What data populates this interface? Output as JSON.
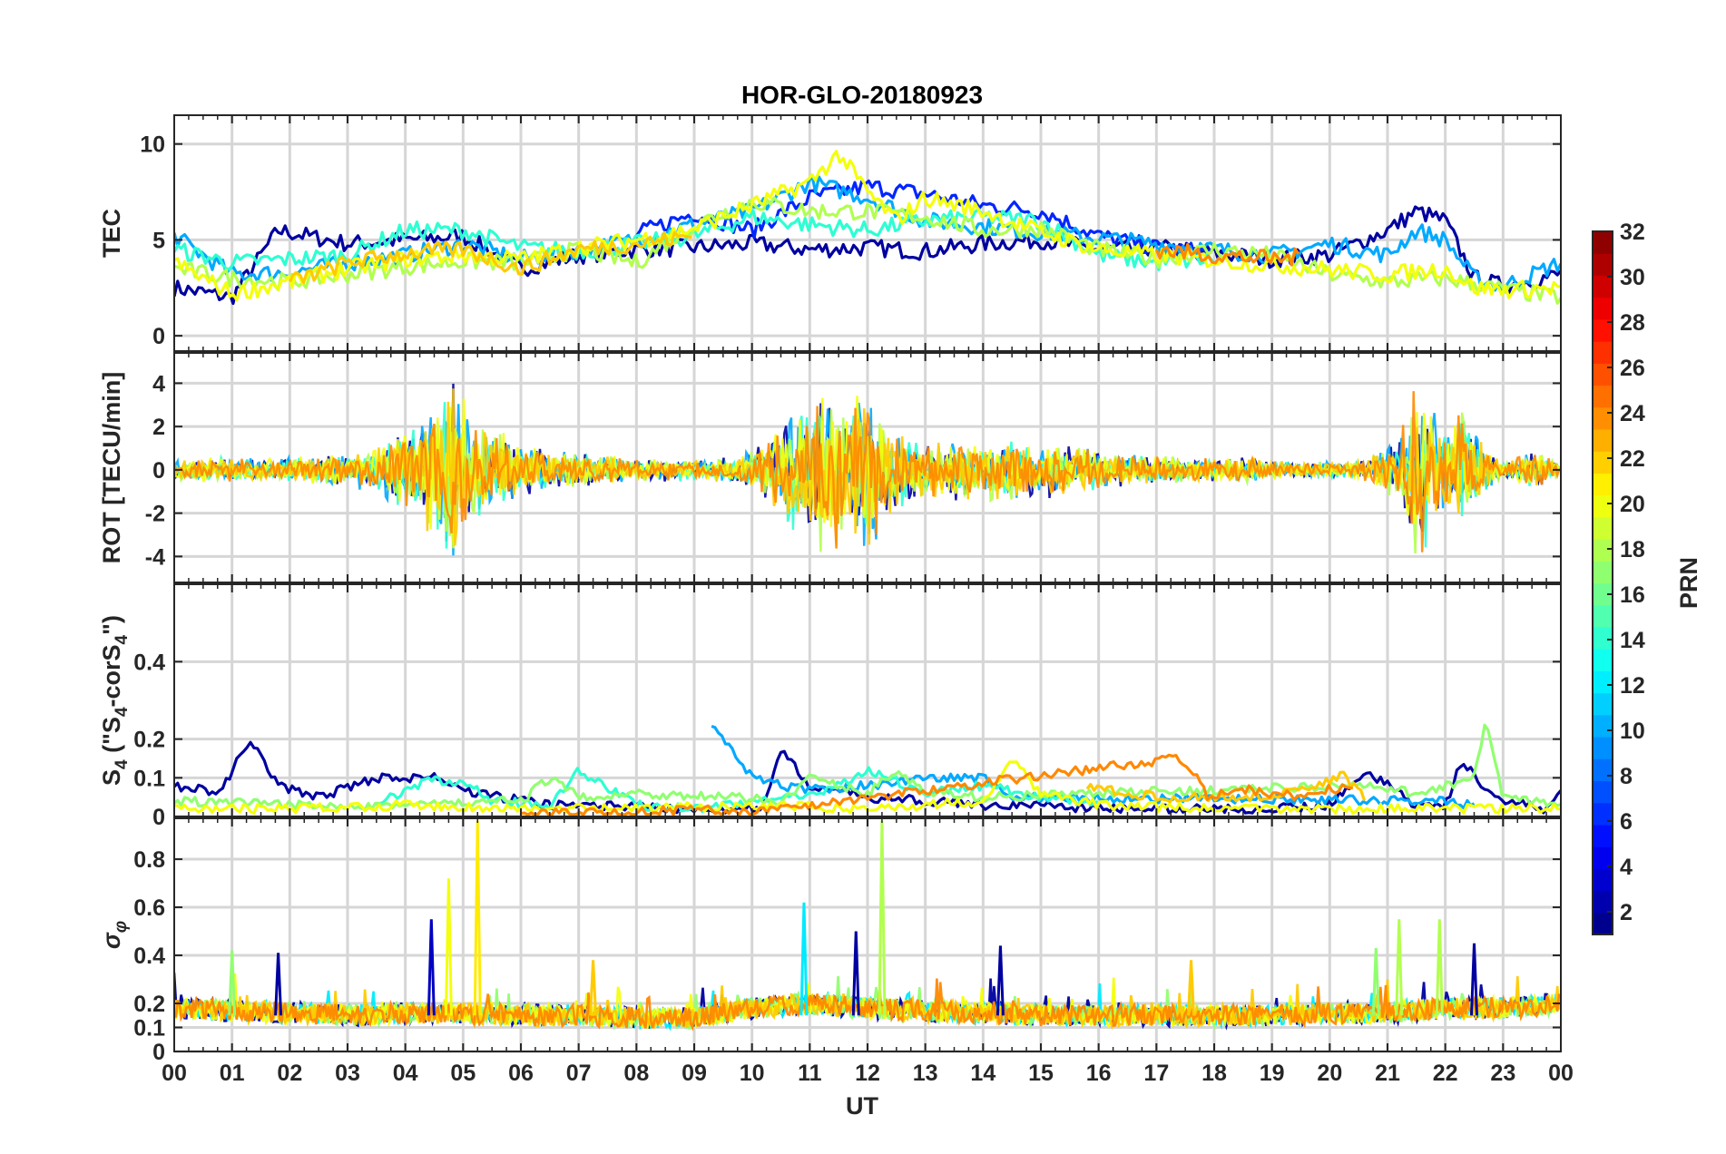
{
  "chart_data": {
    "type": "line",
    "title": "HOR-GLO-20180923",
    "xlabel": "UT",
    "x_tick_labels": [
      "00",
      "01",
      "02",
      "03",
      "04",
      "05",
      "06",
      "07",
      "08",
      "09",
      "10",
      "11",
      "12",
      "13",
      "14",
      "15",
      "16",
      "17",
      "18",
      "19",
      "20",
      "21",
      "22",
      "23",
      "00"
    ],
    "xlim_hours": [
      0,
      24
    ],
    "color_by": "PRN",
    "panels": [
      {
        "id": "tec",
        "ylabel": "TEC",
        "ylim": [
          -0.8,
          11.5
        ],
        "yticks": [
          0,
          5,
          10
        ],
        "ytick_labels": [
          "0",
          "5",
          "10"
        ],
        "series": [
          {
            "prn": 2,
            "x": [
              0,
              1,
              1.8,
              3,
              4,
              5,
              6,
              7,
              8,
              9,
              10,
              11,
              12,
              13,
              14,
              15,
              16,
              17,
              18,
              19,
              20,
              21,
              21.5,
              22,
              22.5,
              23,
              24
            ],
            "y": [
              2.5,
              2,
              5.5,
              4.8,
              5,
              5.2,
              3.5,
              4.2,
              4.5,
              4.6,
              4.8,
              4.5,
              4.6,
              4.4,
              4.8,
              5,
              4.5,
              4.6,
              4.3,
              4,
              4.2,
              5.5,
              6.5,
              6,
              3,
              2.6,
              3.2
            ]
          },
          {
            "prn": 6,
            "x": [
              8,
              9,
              10,
              11,
              12,
              13,
              14,
              15,
              16,
              17,
              18
            ],
            "y": [
              5.3,
              6.4,
              5.5,
              7.2,
              7.8,
              7.4,
              6.8,
              6.5,
              5.2,
              4.6,
              4.3
            ]
          },
          {
            "prn": 10,
            "x": [
              0,
              1,
              2,
              3,
              4,
              5,
              6,
              7,
              8,
              9,
              10,
              11,
              12,
              13,
              19,
              20,
              21,
              21.5,
              22,
              22.5,
              23,
              24
            ],
            "y": [
              5.2,
              3.2,
              3.3,
              3.8,
              4.2,
              4.8,
              4,
              4.5,
              5,
              5.8,
              6.5,
              8,
              7.2,
              6,
              4.2,
              4.8,
              4.2,
              5.5,
              5,
              3,
              2.6,
              3.8
            ]
          },
          {
            "prn": 14,
            "x": [
              0,
              1,
              2,
              3,
              4,
              5,
              6,
              7,
              8,
              9,
              10,
              11,
              12,
              13,
              14,
              15,
              16,
              17,
              18
            ],
            "y": [
              4.5,
              3.8,
              4,
              4.2,
              5.5,
              5.5,
              4.6,
              4.4,
              4.8,
              5.2,
              6.2,
              5.8,
              5.5,
              6,
              6.2,
              6,
              4.2,
              3.8,
              4
            ]
          },
          {
            "prn": 18,
            "x": [
              0,
              1,
              2,
              3,
              4,
              5,
              6,
              7,
              8,
              9,
              10,
              11,
              12,
              13,
              14,
              15,
              16,
              17,
              18,
              19,
              20,
              21,
              22,
              23,
              24
            ],
            "y": [
              3.5,
              3,
              2.8,
              3.2,
              3.6,
              3.9,
              3.8,
              4.5,
              3.8,
              5.8,
              7,
              6.5,
              6.5,
              6.2,
              5.5,
              5.6,
              4.5,
              4,
              4.5,
              4.2,
              3.2,
              2.8,
              3,
              2.4,
              2
            ]
          },
          {
            "prn": 20,
            "x": [
              0,
              1,
              2,
              3,
              4,
              5,
              6,
              7,
              8,
              9,
              10,
              11,
              11.5,
              12,
              12.5,
              13,
              14,
              15,
              16,
              17,
              21,
              22,
              22.5,
              23,
              24
            ],
            "y": [
              3.8,
              2.2,
              2.8,
              3.5,
              4,
              4.2,
              4,
              4.6,
              5,
              5.6,
              6.8,
              8,
              9.5,
              7.5,
              6,
              7.2,
              6.5,
              5.4,
              4.5,
              4.2,
              3.2,
              3.5,
              2.5,
              2.4,
              2.5
            ]
          },
          {
            "prn": 22,
            "x": [
              2,
              3,
              4,
              5,
              6,
              7,
              8,
              9
            ],
            "y": [
              2.8,
              3.8,
              4.3,
              4.5,
              3.5,
              4.5,
              4.8,
              5.2
            ]
          },
          {
            "prn": 24,
            "x": [
              17,
              18,
              19,
              19.5
            ],
            "y": [
              4.5,
              4.2,
              4,
              4.1
            ]
          }
        ]
      },
      {
        "id": "rot",
        "ylabel": "ROT [TECU/min]",
        "ylim": [
          -5.2,
          5.4
        ],
        "yticks": [
          -4,
          -2,
          0,
          2,
          4
        ],
        "ytick_labels": [
          "-4",
          "-2",
          "0",
          "2",
          "4"
        ],
        "activity_envelope": {
          "x": [
            0,
            0.8,
            1.5,
            2,
            3,
            3.5,
            4,
            4.5,
            4.8,
            5.2,
            6,
            6.5,
            7,
            8,
            9,
            9.5,
            10,
            10.8,
            11.1,
            11.6,
            12,
            12.3,
            12.8,
            13.5,
            14.5,
            15.5,
            16.5,
            17.5,
            18.5,
            19.5,
            20.5,
            21.2,
            21.5,
            22,
            22.3,
            22.6,
            23,
            23.5,
            24
          ],
          "amplitude": [
            0.5,
            0.7,
            0.5,
            0.6,
            0.8,
            1.2,
            2.3,
            3.5,
            4.8,
            2.5,
            1.4,
            0.9,
            0.8,
            0.6,
            0.5,
            0.6,
            0.9,
            3.2,
            4.2,
            3.5,
            4.4,
            2.5,
            1.5,
            1.5,
            1.6,
            1.2,
            0.8,
            0.6,
            0.6,
            0.4,
            0.4,
            1.5,
            4.5,
            2,
            3.2,
            1.5,
            0.4,
            1,
            0.3
          ]
        }
      },
      {
        "id": "s4",
        "ylabel": "S4 (\"S4-corS4\")",
        "ylim": [
          0,
          0.6
        ],
        "yticks": [
          0,
          0.1,
          0.2,
          0.4
        ],
        "ytick_labels": [
          "0",
          "0.1",
          "0.2",
          "0.4"
        ],
        "series": [
          {
            "prn": 2,
            "x": [
              0,
              0.8,
              1.3,
              1.8,
              2.5,
              3.5,
              4.5,
              5.2,
              6.5,
              7.2,
              9,
              10.2,
              10.5,
              11,
              12,
              13,
              14,
              15,
              16,
              17,
              18,
              19,
              20,
              20.6,
              21.2,
              21.4,
              21.6,
              22,
              22.3,
              22.6,
              23,
              23.7,
              24
            ],
            "y": [
              0.08,
              0.06,
              0.2,
              0.08,
              0.05,
              0.1,
              0.1,
              0.06,
              0.03,
              0.03,
              0.02,
              0.02,
              0.17,
              0.08,
              0.05,
              0.04,
              0.03,
              0.03,
              0.02,
              0.02,
              0.02,
              0.02,
              0.03,
              0.12,
              0.06,
              0.03,
              0.04,
              0.03,
              0.15,
              0.08,
              0.04,
              0.02,
              0.06
            ]
          },
          {
            "prn": 10,
            "x": [
              9.3,
              9.6,
              10,
              10.5,
              11,
              12,
              13,
              14,
              14.5,
              21.5,
              22,
              22.5
            ],
            "y": [
              0.24,
              0.18,
              0.1,
              0.08,
              0.07,
              0.08,
              0.1,
              0.1,
              0.05,
              0.04,
              0.04,
              0.03
            ]
          },
          {
            "prn": 14,
            "x": [
              3.5,
              4.5,
              5.2,
              5.5,
              6.5,
              7,
              8,
              9,
              10,
              11,
              12,
              13,
              14,
              15,
              16
            ],
            "y": [
              0.03,
              0.1,
              0.07,
              0.04,
              0.03,
              0.12,
              0.03,
              0.02,
              0.04,
              0.05,
              0.12,
              0.06,
              0.08,
              0.05,
              0.03
            ]
          },
          {
            "prn": 17,
            "x": [
              0,
              2,
              4,
              6,
              6.5,
              7,
              8,
              9.5,
              10.5,
              11,
              12,
              12.5,
              13,
              14,
              20.5,
              21,
              21.5,
              22.5,
              22.7,
              23,
              24
            ],
            "y": [
              0.04,
              0.03,
              0.03,
              0.04,
              0.1,
              0.05,
              0.06,
              0.05,
              0.04,
              0.1,
              0.06,
              0.12,
              0.06,
              0.05,
              0.08,
              0.07,
              0.06,
              0.1,
              0.24,
              0.05,
              0.03
            ]
          },
          {
            "prn": 20,
            "x": [
              0,
              2,
              4,
              6,
              8,
              10,
              12,
              14,
              14.5,
              15,
              16,
              18,
              20,
              22,
              24
            ],
            "y": [
              0.02,
              0.02,
              0.03,
              0.02,
              0.02,
              0.03,
              0.02,
              0.04,
              0.15,
              0.06,
              0.03,
              0.02,
              0.02,
              0.02,
              0.02
            ]
          },
          {
            "prn": 22,
            "x": [
              15.8,
              16.5,
              17,
              17.5,
              17.8,
              18,
              19,
              19.8,
              20.2,
              20.6
            ],
            "y": [
              0.08,
              0.06,
              0.05,
              0.05,
              0.05,
              0.05,
              0.05,
              0.08,
              0.11,
              0.05
            ]
          },
          {
            "prn": 24,
            "x": [
              6,
              7,
              8,
              9,
              10,
              17.3,
              17.6,
              17.9,
              18.5,
              19,
              19.5,
              20,
              20.4
            ],
            "y": [
              0.01,
              0.01,
              0.01,
              0.02,
              0.01,
              0.15,
              0.12,
              0.05,
              0.07,
              0.06,
              0.05,
              0.07,
              0.08
            ]
          }
        ]
      },
      {
        "id": "sigma_phi",
        "ylabel": "σ φ",
        "ylim": [
          0,
          0.97
        ],
        "yticks": [
          0,
          0.1,
          0.2,
          0.4,
          0.6,
          0.8
        ],
        "ytick_labels": [
          "0",
          "0.1",
          "0.2",
          "0.4",
          "0.6",
          "0.8"
        ],
        "baseline": {
          "x": [
            0,
            1,
            2,
            3,
            4,
            5,
            6,
            7,
            8,
            9,
            10,
            11,
            12,
            13,
            14,
            15,
            16,
            17,
            18,
            19,
            20,
            21,
            22,
            23,
            24
          ],
          "y": [
            0.18,
            0.17,
            0.16,
            0.15,
            0.16,
            0.16,
            0.15,
            0.15,
            0.14,
            0.14,
            0.18,
            0.2,
            0.18,
            0.17,
            0.16,
            0.15,
            0.15,
            0.15,
            0.15,
            0.15,
            0.16,
            0.16,
            0.18,
            0.18,
            0.2
          ]
        },
        "spikes": [
          {
            "x": 1.0,
            "y": 0.42,
            "prn": 17
          },
          {
            "x": 1.8,
            "y": 0.41,
            "prn": 2
          },
          {
            "x": 4.45,
            "y": 0.55,
            "prn": 3
          },
          {
            "x": 4.75,
            "y": 0.72,
            "prn": 20
          },
          {
            "x": 5.25,
            "y": 0.96,
            "prn": 21
          },
          {
            "x": 7.25,
            "y": 0.38,
            "prn": 22
          },
          {
            "x": 10.9,
            "y": 0.62,
            "prn": 12
          },
          {
            "x": 11.8,
            "y": 0.5,
            "prn": 2
          },
          {
            "x": 12.25,
            "y": 0.96,
            "prn": 18
          },
          {
            "x": 14.3,
            "y": 0.44,
            "prn": 2
          },
          {
            "x": 17.6,
            "y": 0.38,
            "prn": 22
          },
          {
            "x": 20.8,
            "y": 0.43,
            "prn": 17
          },
          {
            "x": 21.2,
            "y": 0.55,
            "prn": 18
          },
          {
            "x": 21.9,
            "y": 0.55,
            "prn": 18
          },
          {
            "x": 22.5,
            "y": 0.45,
            "prn": 2
          }
        ]
      }
    ],
    "colorbar": {
      "label": "PRN",
      "range": [
        1,
        32
      ],
      "colormap": "jet",
      "ticks": [
        2,
        4,
        6,
        8,
        10,
        12,
        14,
        16,
        18,
        20,
        22,
        24,
        26,
        28,
        30,
        32
      ],
      "tick_labels": [
        "2",
        "4",
        "6",
        "8",
        "10",
        "12",
        "14",
        "16",
        "18",
        "20",
        "22",
        "24",
        "26",
        "28",
        "30",
        "32"
      ]
    }
  }
}
